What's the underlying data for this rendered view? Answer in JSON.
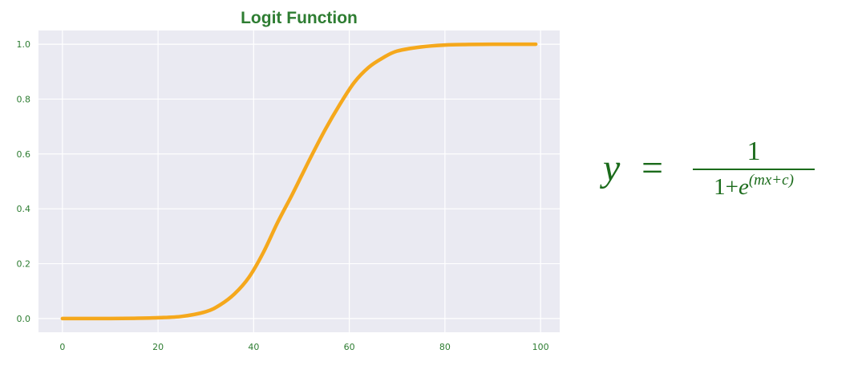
{
  "chart_data": {
    "type": "line",
    "title": "Logit Function",
    "xlabel": "",
    "ylabel": "",
    "xlim": [
      -5,
      104
    ],
    "ylim": [
      -0.05,
      1.05
    ],
    "x_ticks": [
      0,
      20,
      40,
      60,
      80,
      100
    ],
    "y_ticks": [
      "0.0",
      "0.2",
      "0.4",
      "0.6",
      "0.8",
      "1.0"
    ],
    "grid": true,
    "series": [
      {
        "x": [
          0,
          5,
          10,
          15,
          20,
          25,
          30,
          33,
          36,
          39,
          42,
          45,
          48,
          50,
          52,
          55,
          58,
          61,
          64,
          67,
          70,
          75,
          80,
          85,
          90,
          95,
          99
        ],
        "y": [
          0.0,
          0.0,
          0.0,
          0.001,
          0.003,
          0.008,
          0.025,
          0.05,
          0.09,
          0.15,
          0.24,
          0.35,
          0.45,
          0.52,
          0.59,
          0.69,
          0.78,
          0.86,
          0.915,
          0.95,
          0.975,
          0.99,
          0.997,
          0.999,
          1.0,
          1.0,
          1.0
        ]
      }
    ]
  },
  "colors": {
    "line": "#f5a81c",
    "plot_bg": "#eaeaf2",
    "grid": "#ffffff",
    "text": "#2e7d32",
    "formula": "#1b6b1b"
  },
  "formula": {
    "lhs": "y",
    "equals": "=",
    "numerator": "1",
    "denominator_prefix": "1+",
    "denominator_base": "e",
    "denominator_exponent": "(mx+c)"
  }
}
